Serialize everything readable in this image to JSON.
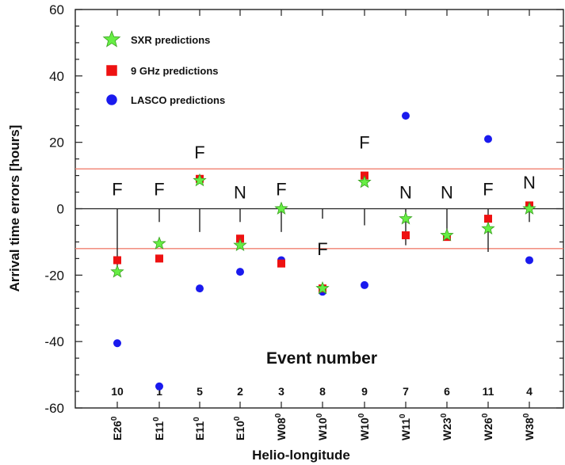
{
  "chart_data": {
    "type": "scatter",
    "ylabel": "Arrival time errors [hours]",
    "xlabel": "Helio-longitude",
    "annotation": "Event number",
    "ylim": [
      -60,
      60
    ],
    "yticks": [
      -60,
      -40,
      -20,
      0,
      20,
      40,
      60
    ],
    "reference_lines": [
      12,
      -12
    ],
    "legend_position": "top-left",
    "categories": [
      "E26",
      "E11",
      "E11",
      "E10",
      "W08",
      "W10",
      "W10",
      "W11",
      "W23",
      "W26",
      "W38"
    ],
    "superscript": "0",
    "event_numbers": [
      "10",
      "1",
      "5",
      "2",
      "3",
      "8",
      "9",
      "7",
      "6",
      "11",
      "4"
    ],
    "flags": [
      "F",
      "F",
      "F",
      "N",
      "F",
      "F",
      "F",
      "N",
      "N",
      "F",
      "N"
    ],
    "flag_y": [
      6,
      6,
      17,
      5,
      6,
      -12,
      20,
      5,
      5,
      6,
      8
    ],
    "error_bars": [
      [
        -19,
        0
      ],
      [
        -4,
        0
      ],
      [
        -7,
        0
      ],
      [
        -4,
        0
      ],
      [
        -7,
        0
      ],
      [
        -3,
        0
      ],
      [
        -5,
        0
      ],
      [
        -11,
        0
      ],
      [
        -8,
        0
      ],
      [
        -13,
        0
      ],
      [
        -4,
        0
      ]
    ],
    "series": [
      {
        "name": "SXR predictions",
        "marker": "star",
        "color": "#66ee44",
        "values": [
          -19,
          -10.5,
          8.5,
          -11,
          0,
          -24,
          8,
          -3,
          -8,
          -6,
          0
        ]
      },
      {
        "name": "9 GHz predictions",
        "marker": "square",
        "color": "#ee1111",
        "values": [
          -15.5,
          -15,
          9,
          -9,
          -16.5,
          -24,
          10,
          -8,
          -8.5,
          -3,
          1
        ]
      },
      {
        "name": "LASCO predictions",
        "marker": "circle",
        "color": "#1a1aee",
        "values": [
          -40.5,
          -53.5,
          -24,
          -19,
          -15.5,
          -25,
          -23,
          28,
          null,
          21,
          -15.5
        ]
      }
    ]
  }
}
